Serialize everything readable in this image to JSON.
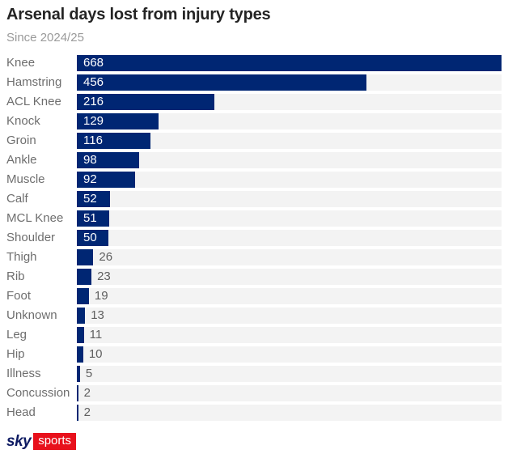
{
  "header": {
    "title": "Arsenal days lost from injury types",
    "subtitle": "Since 2024/25"
  },
  "chart_data": {
    "type": "bar",
    "orientation": "horizontal",
    "title": "Arsenal days lost from injury types",
    "subtitle": "Since 2024/25",
    "categories": [
      "Knee",
      "Hamstring",
      "ACL Knee",
      "Knock",
      "Groin",
      "Ankle",
      "Muscle",
      "Calf",
      "MCL Knee",
      "Shoulder",
      "Thigh",
      "Rib",
      "Foot",
      "Unknown",
      "Leg",
      "Hip",
      "Illness",
      "Concussion",
      "Head"
    ],
    "values": [
      668,
      456,
      216,
      129,
      116,
      98,
      92,
      52,
      51,
      50,
      26,
      23,
      19,
      13,
      11,
      10,
      5,
      2,
      2
    ],
    "xlim": [
      0,
      668
    ],
    "value_labels": true,
    "grid": false,
    "legend": false,
    "bar_color": "#002673",
    "track_color": "#f3f3f3"
  },
  "footer": {
    "logo": {
      "sky_text": "sky",
      "sports_text": "sports",
      "navy_color": "#0e1b63",
      "red_color": "#e8111c"
    }
  }
}
